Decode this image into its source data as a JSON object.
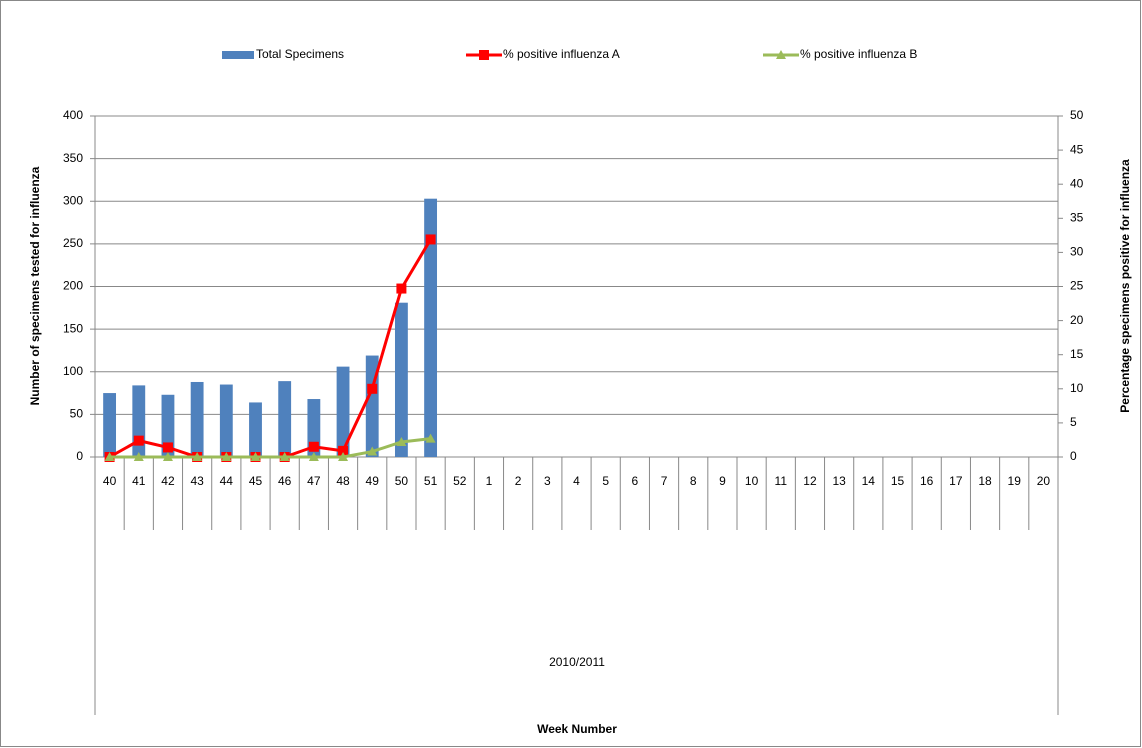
{
  "chart_data": {
    "type": "bar_line",
    "x_label": "Week Number",
    "x_group_label": "2010/2011",
    "y_label": "Number of specimens tested for influenza",
    "y2_label": "Percentage specimens positive for influenza",
    "categories": [
      "40",
      "41",
      "42",
      "43",
      "44",
      "45",
      "46",
      "47",
      "48",
      "49",
      "50",
      "51",
      "52",
      "1",
      "2",
      "3",
      "4",
      "5",
      "6",
      "7",
      "8",
      "9",
      "10",
      "11",
      "12",
      "13",
      "14",
      "15",
      "16",
      "17",
      "18",
      "19",
      "20"
    ],
    "series": [
      {
        "name": "Total Specimens",
        "type": "bar",
        "color": "#4f81bd",
        "values": [
          75,
          84,
          73,
          88,
          85,
          64,
          89,
          68,
          106,
          119,
          181,
          303,
          null,
          null,
          null,
          null,
          null,
          null,
          null,
          null,
          null,
          null,
          null,
          null,
          null,
          null,
          null,
          null,
          null,
          null,
          null,
          null,
          null
        ]
      },
      {
        "name": "% positive influenza A",
        "type": "line",
        "marker": "square",
        "color": "#ff0000",
        "axis": "y2",
        "values": [
          0,
          2.4,
          1.4,
          0,
          0,
          0,
          0,
          1.5,
          0.9,
          10,
          24.7,
          31.9,
          null,
          null,
          null,
          null,
          null,
          null,
          null,
          null,
          null,
          null,
          null,
          null,
          null,
          null,
          null,
          null,
          null,
          null,
          null,
          null,
          null
        ]
      },
      {
        "name": "% positive influenza B",
        "type": "line",
        "marker": "triangle",
        "color": "#9bbb59",
        "axis": "y2",
        "values": [
          0,
          0,
          0,
          0,
          0,
          0,
          0,
          0,
          0,
          0.8,
          2.2,
          2.7,
          null,
          null,
          null,
          null,
          null,
          null,
          null,
          null,
          null,
          null,
          null,
          null,
          null,
          null,
          null,
          null,
          null,
          null,
          null,
          null,
          null
        ]
      }
    ],
    "ylim": [
      0,
      400
    ],
    "yticks": [
      0,
      50,
      100,
      150,
      200,
      250,
      300,
      350,
      400
    ],
    "y2lim": [
      0,
      50
    ],
    "y2ticks": [
      0,
      5,
      10,
      15,
      20,
      25,
      30,
      35,
      40,
      45,
      50
    ],
    "grid": true,
    "legend": "top"
  }
}
